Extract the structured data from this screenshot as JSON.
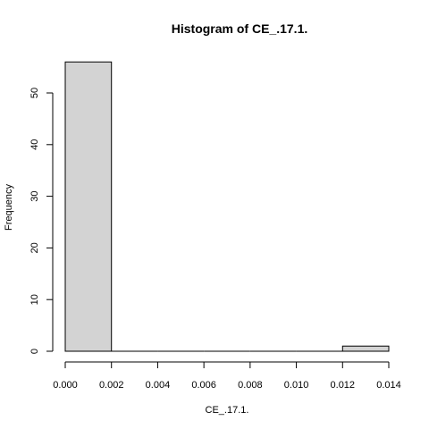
{
  "chart_data": {
    "type": "bar",
    "title": "Histogram of CE_.17.1.",
    "xlabel": "CE_.17.1.",
    "ylabel": "Frequency",
    "bins": [
      {
        "from": 0.0,
        "to": 0.002,
        "count": 56
      },
      {
        "from": 0.002,
        "to": 0.004,
        "count": 0
      },
      {
        "from": 0.004,
        "to": 0.006,
        "count": 0
      },
      {
        "from": 0.006,
        "to": 0.008,
        "count": 0
      },
      {
        "from": 0.008,
        "to": 0.01,
        "count": 0
      },
      {
        "from": 0.01,
        "to": 0.012,
        "count": 0
      },
      {
        "from": 0.012,
        "to": 0.014,
        "count": 1
      }
    ],
    "x_ticks": [
      "0.000",
      "0.002",
      "0.004",
      "0.006",
      "0.008",
      "0.010",
      "0.012",
      "0.014"
    ],
    "y_ticks": [
      "0",
      "10",
      "20",
      "30",
      "40",
      "50"
    ],
    "xlim": [
      0,
      0.014
    ],
    "ylim": [
      0,
      56
    ],
    "colors": {
      "bar_fill": "#d3d3d3",
      "bar_stroke": "#000000"
    },
    "grid": false,
    "legend": "none"
  }
}
